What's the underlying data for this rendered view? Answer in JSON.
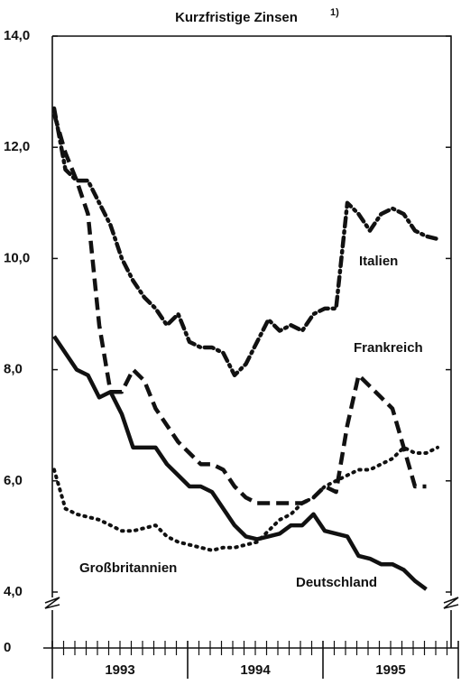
{
  "chart_data": {
    "type": "line",
    "title": "Kurzfristige Zinsen",
    "title_note": "1)",
    "categories": [
      null,
      null,
      null,
      null,
      null,
      null,
      null,
      null,
      null,
      null,
      null,
      null,
      null,
      null,
      null,
      null,
      null,
      null,
      null,
      null,
      null,
      null,
      null,
      null,
      null,
      null,
      null,
      null,
      null,
      null,
      null,
      null,
      null,
      null,
      null
    ],
    "year_labels": [
      "1993",
      "1994",
      "1995"
    ],
    "ylim": [
      4,
      14
    ],
    "yticks": [
      {
        "value": 4,
        "label": "4,0"
      },
      {
        "value": 6,
        "label": "6,0"
      },
      {
        "value": 8,
        "label": "8,0"
      },
      {
        "value": 10,
        "label": "10,0"
      },
      {
        "value": 12,
        "label": "12,0"
      },
      {
        "value": 14,
        "label": "14,0"
      }
    ],
    "ybreak_tick": 0,
    "series": [
      {
        "name": "Italien",
        "color": "#111111",
        "style": "dashdot",
        "values": [
          12.7,
          11.6,
          11.4,
          11.4,
          11.0,
          10.6,
          10.0,
          9.6,
          9.3,
          9.1,
          8.8,
          9.0,
          8.5,
          8.4,
          8.4,
          8.3,
          7.9,
          8.1,
          8.5,
          8.9,
          8.7,
          8.8,
          8.7,
          9.0,
          9.1,
          9.1,
          11.0,
          10.8,
          10.5,
          10.8,
          10.9,
          10.8,
          10.5,
          10.4,
          10.35
        ]
      },
      {
        "name": "Frankreich",
        "color": "#111111",
        "style": "dashed",
        "values": [
          12.6,
          11.9,
          11.4,
          10.8,
          8.8,
          7.6,
          7.6,
          8.0,
          7.8,
          7.3,
          7.0,
          6.7,
          6.5,
          6.3,
          6.3,
          6.2,
          5.9,
          5.7,
          5.6,
          5.6,
          5.6,
          5.6,
          5.6,
          5.7,
          5.9,
          5.8,
          7.0,
          7.9,
          7.7,
          7.5,
          7.3,
          6.6,
          5.9,
          5.9,
          null
        ]
      },
      {
        "name": "Großbritannien",
        "color": "#111111",
        "style": "dotted",
        "values": [
          6.2,
          5.5,
          5.4,
          5.35,
          5.3,
          5.2,
          5.1,
          5.1,
          5.15,
          5.2,
          5.0,
          4.9,
          4.85,
          4.8,
          4.75,
          4.8,
          4.8,
          4.85,
          4.9,
          5.1,
          5.3,
          5.4,
          5.6,
          5.7,
          5.9,
          6.0,
          6.1,
          6.2,
          6.2,
          6.3,
          6.4,
          6.6,
          6.5,
          6.5,
          6.6
        ]
      },
      {
        "name": "Deutschland",
        "color": "#111111",
        "style": "solid",
        "values": [
          8.6,
          8.3,
          8.0,
          7.9,
          7.5,
          7.6,
          7.2,
          6.6,
          6.6,
          6.6,
          6.3,
          6.1,
          5.9,
          5.9,
          5.8,
          5.5,
          5.2,
          5.0,
          4.95,
          5.0,
          5.05,
          5.2,
          5.2,
          5.4,
          5.1,
          5.05,
          5.0,
          4.65,
          4.6,
          4.5,
          4.5,
          4.4,
          4.2,
          4.05,
          null
        ]
      }
    ]
  }
}
